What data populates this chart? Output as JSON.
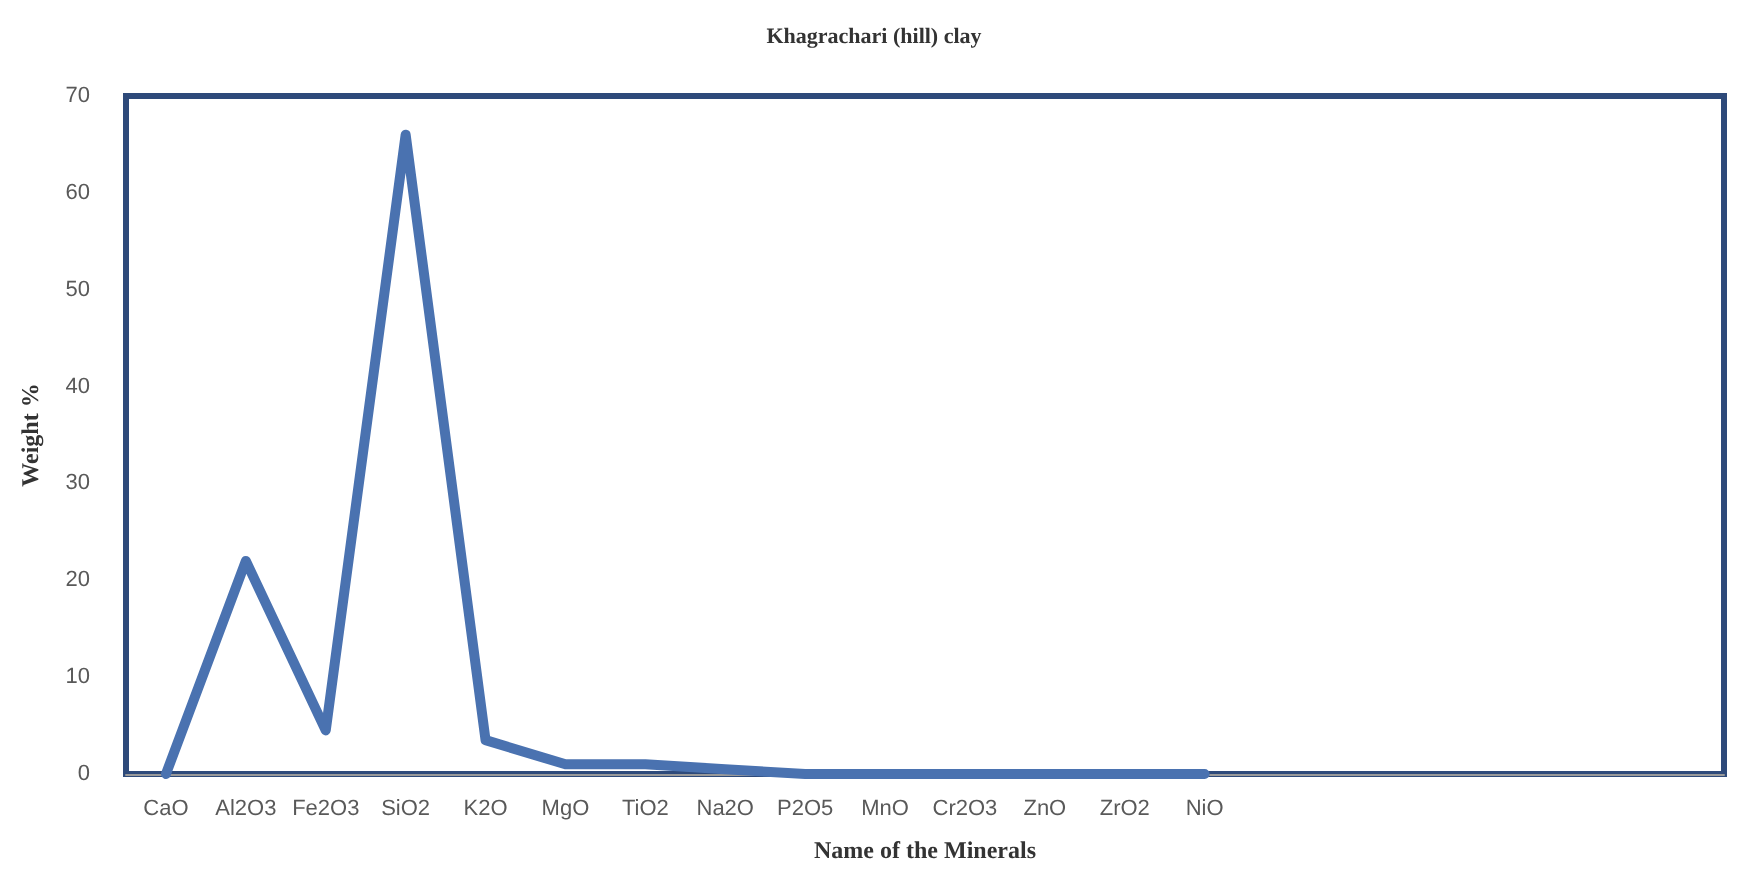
{
  "chart_data": {
    "type": "line",
    "title": "Khagrachari (hill) clay",
    "xlabel": "Name of the Minerals",
    "ylabel": "Weight %",
    "categories": [
      "CaO",
      "Al2O3",
      "Fe2O3",
      "SiO2",
      "K2O",
      "MgO",
      "TiO2",
      "Na2O",
      "P2O5",
      "MnO",
      "Cr2O3",
      "ZnO",
      "ZrO2",
      "NiO",
      null,
      null,
      null,
      null,
      null,
      null
    ],
    "series": [
      {
        "color": "#4a72b0",
        "values": [
          0,
          22,
          4.5,
          66,
          3.5,
          1,
          1,
          0.5,
          0,
          0,
          0,
          0,
          0,
          0,
          null,
          null,
          null,
          null,
          null,
          null
        ]
      }
    ],
    "ylim": [
      0,
      70
    ],
    "yticks": [
      0,
      10,
      20,
      30,
      40,
      50,
      60,
      70
    ],
    "grid": false,
    "marker": "none",
    "line_style": "solid"
  }
}
